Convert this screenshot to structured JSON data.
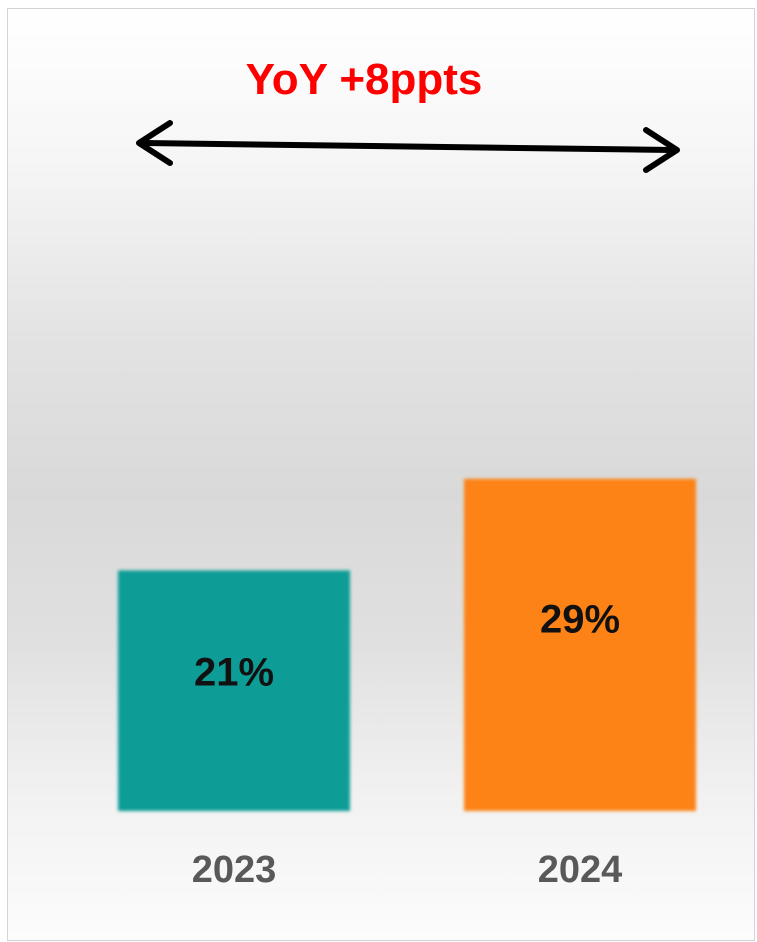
{
  "chart_data": {
    "type": "bar",
    "title": "YoY +8ppts",
    "categories": [
      "2023",
      "2024"
    ],
    "values": [
      21,
      29
    ],
    "value_labels": [
      "21%",
      "29%"
    ],
    "unit": "%",
    "ylim": [
      0,
      42
    ],
    "colors": [
      "#079c96",
      "#fd8312"
    ],
    "annotation": {
      "type": "double-arrow",
      "text": "YoY +8ppts",
      "color": "#ff0000"
    },
    "grid": false,
    "legend": "none"
  }
}
